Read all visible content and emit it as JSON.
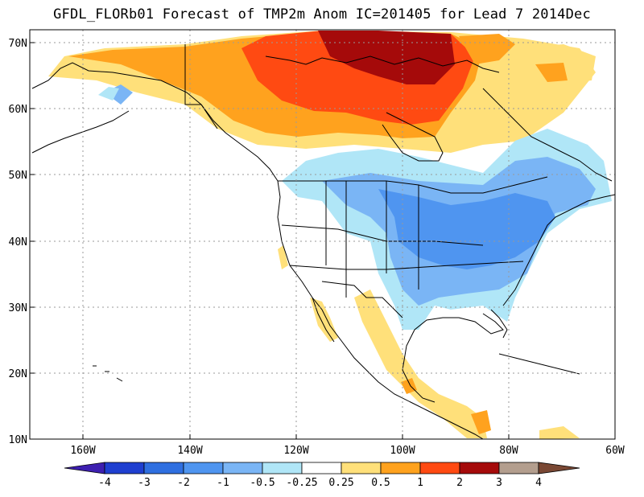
{
  "title": "GFDL_FLORb01 Forecast of TMP2m Anom  IC=201405 for Lead 7 2014Dec",
  "axes": {
    "lat_labels": [
      "70N",
      "60N",
      "50N",
      "40N",
      "30N",
      "20N",
      "10N"
    ],
    "lat_values": [
      70,
      60,
      50,
      40,
      30,
      20,
      10
    ],
    "lon_labels": [
      "160W",
      "140W",
      "120W",
      "100W",
      "80W",
      "60W"
    ],
    "lon_values": [
      -160,
      -140,
      -120,
      -100,
      -80,
      -60
    ],
    "lat_range": [
      10,
      72
    ],
    "lon_range": [
      -170,
      -60
    ]
  },
  "colorbar": {
    "labels": [
      "-4",
      "-3",
      "-2",
      "-1",
      "-0.5",
      "-0.25",
      "0.25",
      "0.5",
      "1",
      "2",
      "3",
      "4"
    ],
    "colors": [
      "#3d1fb0",
      "#1f3fd0",
      "#2f6fe0",
      "#4f95f0",
      "#7ab5f5",
      "#b0e6f7",
      "#ffffff",
      "#ffe07a",
      "#ffa21e",
      "#ff4a12",
      "#a50a0a",
      "#b39e8e",
      "#7a4834"
    ]
  },
  "colors": {
    "frame": "#000000",
    "grid": "#999999",
    "coast": "#000000"
  }
}
